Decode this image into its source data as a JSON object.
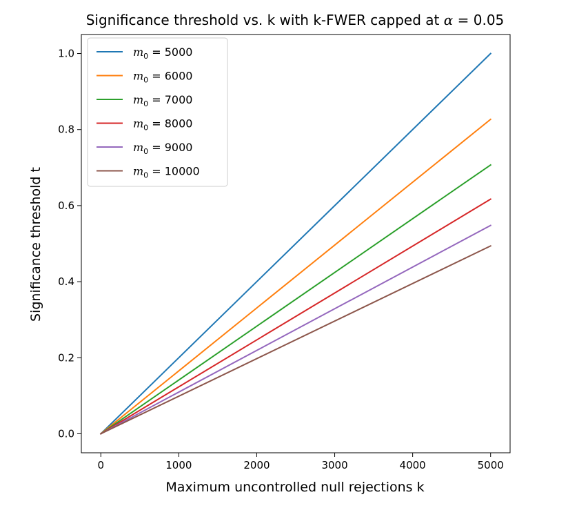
{
  "chart_data": {
    "type": "line",
    "title_main": "Significance threshold vs. k with k-FWER capped at ",
    "title_alpha_symbol": "α",
    "title_alpha_rest": " = 0.05",
    "xlabel": "Maximum uncontrolled null rejections k",
    "ylabel": "Significance threshold t",
    "xlim": [
      -250,
      5250
    ],
    "ylim": [
      -0.05,
      1.05
    ],
    "xticks": [
      0,
      1000,
      2000,
      3000,
      4000,
      5000
    ],
    "xtick_labels": [
      "0",
      "1000",
      "2000",
      "3000",
      "4000",
      "5000"
    ],
    "yticks": [
      0.0,
      0.2,
      0.4,
      0.6,
      0.8,
      1.0
    ],
    "ytick_labels": [
      "0.0",
      "0.2",
      "0.4",
      "0.6",
      "0.8",
      "1.0"
    ],
    "grid": false,
    "legend_position": "top-left",
    "x": [
      0,
      5000
    ],
    "series": [
      {
        "name": "5000",
        "label_m": "m",
        "label_sub": "0",
        "label_eq": " = 5000",
        "color": "#1f77b4",
        "values": [
          0,
          1.0
        ]
      },
      {
        "name": "6000",
        "label_m": "m",
        "label_sub": "0",
        "label_eq": " = 6000",
        "color": "#ff7f0e",
        "values": [
          0,
          0.827
        ]
      },
      {
        "name": "7000",
        "label_m": "m",
        "label_sub": "0",
        "label_eq": " = 7000",
        "color": "#2ca02c",
        "values": [
          0,
          0.707
        ]
      },
      {
        "name": "8000",
        "label_m": "m",
        "label_sub": "0",
        "label_eq": " = 8000",
        "color": "#d62728",
        "values": [
          0,
          0.617
        ]
      },
      {
        "name": "9000",
        "label_m": "m",
        "label_sub": "0",
        "label_eq": " = 9000",
        "color": "#9467bd",
        "values": [
          0,
          0.548
        ]
      },
      {
        "name": "10000",
        "label_m": "m",
        "label_sub": "0",
        "label_eq": " = 10000",
        "color": "#8c564b",
        "values": [
          0,
          0.494
        ]
      }
    ]
  }
}
